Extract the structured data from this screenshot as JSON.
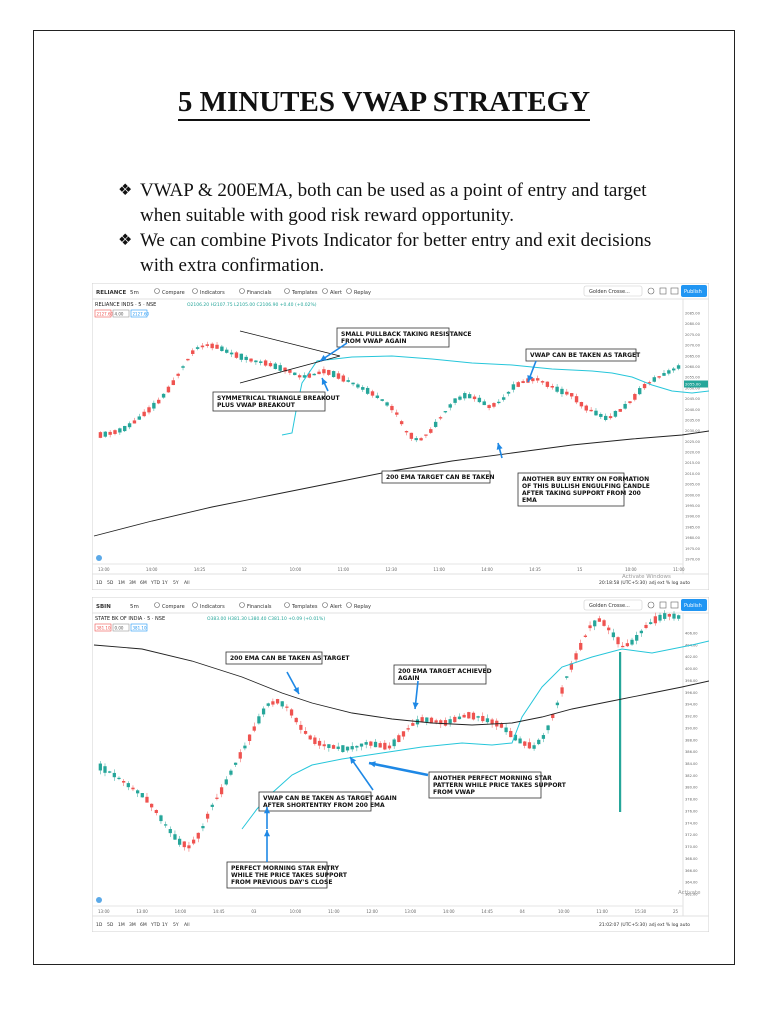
{
  "title": "5 MINUTES VWAP STRATEGY",
  "bullets": [
    "VWAP & 200EMA, both can be used as a point of entry and target when suitable with good risk reward opportunity.",
    "We can combine Pivots Indicator for better entry and exit decisions with extra confirmation."
  ],
  "bullet_marker": "❖",
  "charts": [
    {
      "symbol": "RELIANCE",
      "interval": "5m",
      "legend": "RELIANCE INDS · 5 · NSE",
      "toolbar": {
        "compare": "Compare",
        "indicators": "Indicators",
        "financials": "Financials",
        "templates": "Templates",
        "alert": "Alert",
        "replay": "Replay",
        "template_select": "Golden Crosse...",
        "publish": "Publish"
      },
      "ohlc": "O2106.20 H2107.75 L2105.00 C2106.90 +0.40 (+0.02%)",
      "price_boxes": [
        "2127.60",
        "4.00",
        "2127.60"
      ],
      "annotations": [
        "SMALL PULLBACK TAKING RESISTANCE FROM VWAP AGAIN",
        "VWAP CAN BE TAKEN AS TARGET",
        "SYMMETRICAL TRIANGLE BREAKOUT PLUS VWAP BREAKOUT",
        "200 EMA TARGET CAN BE TAKEN",
        "ANOTHER BUY ENTRY ON FORMATION OF THIS BULLISH ENGULFING CANDLE AFTER TAKING SUPPORT FROM 200 EMA"
      ],
      "x_ticks": [
        "13:00",
        "14:00",
        "14:25",
        "12",
        "10:00",
        "11:00",
        "12:30",
        "11:00",
        "14:00",
        "14:35",
        "15",
        "10:00",
        "11:00"
      ],
      "y_ticks": [
        "2085.00",
        "2080.00",
        "2075.00",
        "2070.00",
        "2065.00",
        "2060.00",
        "2055.00",
        "2050.00",
        "2045.00",
        "2040.00",
        "2035.00",
        "2030.00",
        "2025.00",
        "2020.00",
        "2015.00",
        "2010.00",
        "2005.00",
        "2000.00",
        "1995.00",
        "1990.00",
        "1985.00",
        "1980.00",
        "1975.00",
        "1970.00"
      ],
      "last_price": "2055.00",
      "ranges": [
        "1D",
        "5D",
        "1M",
        "3M",
        "6M",
        "YTD",
        "1Y",
        "5Y",
        "All"
      ],
      "footer_time": "20:18:58 (UTC+5:30)",
      "footer_right": "adj  ext  %  log  auto",
      "watermark": "Activate Windows",
      "colors": {
        "up": "#26a69a",
        "down": "#ef5350",
        "vwap": "#26c6da",
        "ema": "#222222",
        "publish": "#2196f3"
      }
    },
    {
      "symbol": "SBIN",
      "interval": "5m",
      "legend": "STATE BK OF INDIA · 5 · NSE",
      "toolbar": {
        "compare": "Compare",
        "indicators": "Indicators",
        "financials": "Financials",
        "templates": "Templates",
        "alert": "Alert",
        "replay": "Replay",
        "template_select": "Golden Crosse...",
        "publish": "Publish"
      },
      "ohlc": "O383.00 H381.30 L380.40 C381.10 +0.09 (+0.01%)",
      "price_boxes": [
        "381.10",
        "0.00",
        "381.10"
      ],
      "annotations": [
        "200 EMA CAN BE TAKEN AS TARGET",
        "200 EMA TARGET ACHIEVED AGAIN",
        "VWAP CAN BE TAKEN AS TARGET AGAIN AFTER SHORTENTRY FROM 200 EMA",
        "ANOTHER PERFECT MORNING STAR PATTERN WHILE PRICE TAKES SUPPORT FROM VWAP",
        "PERFECT MORNING STAR ENTRY WHILE THE PRICE TAKES SUPPORT FROM PREVIOUS DAY'S CLOSE"
      ],
      "x_ticks": [
        "13:00",
        "13:00",
        "14:00",
        "14:45",
        "03",
        "10:00",
        "11:00",
        "12:00",
        "13:00",
        "14:00",
        "14:45",
        "04",
        "10:00",
        "11:00",
        "15:30",
        "25"
      ],
      "y_ticks": [
        "406.00",
        "404.00",
        "402.00",
        "400.00",
        "398.00",
        "396.00",
        "394.00",
        "392.00",
        "390.00",
        "388.00",
        "386.00",
        "384.00",
        "382.00",
        "380.00",
        "378.00",
        "376.00",
        "374.00",
        "372.00",
        "370.00",
        "368.00",
        "366.00",
        "364.00",
        "362.00"
      ],
      "ranges": [
        "1D",
        "5D",
        "1M",
        "3M",
        "6M",
        "YTD",
        "1Y",
        "5Y",
        "All"
      ],
      "footer_time": "21:02:07 (UTC+5:30)",
      "footer_right": "adj  ext  %  log  auto",
      "watermark": "Activate",
      "colors": {
        "up": "#26a69a",
        "down": "#ef5350",
        "vwap": "#26c6da",
        "ema": "#222222",
        "publish": "#2196f3"
      }
    }
  ]
}
